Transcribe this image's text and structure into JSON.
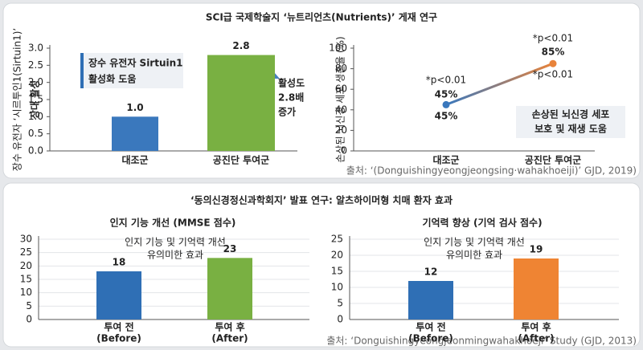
{
  "panels": [
    {
      "title": "SCI급 국제학술지 ‘뉴트리언츠(Nutrients)’ 게재 연구",
      "source": "출처: ‘(Donguishingyeongjeongsing·wahakhoeiji)’ GJD, 2019)"
    },
    {
      "title": "‘동의신경정신과학회지’ 발표 연구: 알츠하이머형 치매 환자 효과",
      "source": "출처: ‘Donguishingyeongjeonmingwahakhoeji’ Study (GJD, 2013)"
    }
  ],
  "chart_data": [
    {
      "type": "bar",
      "y_label": [
        "장수 유전자 ‘시르투인1(Sirtuin1)’",
        "상대 활성"
      ],
      "categories": [
        [
          "대조군"
        ],
        [
          "공진단 투여군"
        ]
      ],
      "values": [
        1.0,
        2.8
      ],
      "value_labels": [
        "1.0",
        "2.8"
      ],
      "colors": [
        "#3a78bd",
        "#79b042"
      ],
      "ylim": [
        0,
        3
      ],
      "yticks": [
        {
          "value": 0,
          "label": "0.0"
        },
        {
          "value": 0.5,
          "label": "0.5"
        },
        {
          "value": 1,
          "label": "1.0"
        },
        {
          "value": 1.5,
          "label": "1.5"
        },
        {
          "value": 2,
          "label": "2.0"
        },
        {
          "value": 2.5,
          "label": "2.5"
        },
        {
          "value": 3,
          "label": "3.0"
        }
      ],
      "grid": false,
      "annotations": [
        "장수 유전자 Sirtuin1",
        "활성화 도움",
        "활성도",
        "2.8배",
        "증가"
      ]
    },
    {
      "type": "line",
      "y_label": [
        "손상된 뇌신경 세포 생존율 (%)"
      ],
      "categories": [
        [
          "대조군"
        ],
        [
          "공진단 투여군"
        ]
      ],
      "values": [
        45,
        85
      ],
      "value_labels": [
        "45%",
        "85%"
      ],
      "colors": [
        "#3a78bd",
        "#e8833a"
      ],
      "ylim": [
        0,
        100
      ],
      "yticks": [
        0,
        20,
        40,
        60,
        80,
        100
      ],
      "grid": false,
      "annotations": [
        "*p<0.01",
        "*p<0.01",
        "*p<0.01",
        "손상된 뇌신경 세포",
        "보호 및 재생 도움"
      ]
    },
    {
      "type": "bar",
      "title": "인지 기능 개선 (MMSE 점수)",
      "categories": [
        [
          "투여 전",
          "(Before)"
        ],
        [
          "투여 후",
          "(After)"
        ]
      ],
      "values": [
        18,
        23
      ],
      "colors": [
        "#2f6fb5",
        "#79b042"
      ],
      "ylim": [
        0,
        30
      ],
      "yticks": [
        0,
        5,
        10,
        15,
        20,
        25,
        30
      ],
      "grid": true,
      "annotations": [
        "인지 기능 및 기억력 개선",
        "유의미한 효과"
      ]
    },
    {
      "type": "bar",
      "title": "기억력 향상 (기억 검사 점수)",
      "categories": [
        [
          "투여 전",
          "(Before)"
        ],
        [
          "투여 후",
          "(After)"
        ]
      ],
      "values": [
        12,
        19
      ],
      "colors": [
        "#2f6fb5",
        "#ef8433"
      ],
      "ylim": [
        0,
        25
      ],
      "yticks": [
        0,
        5,
        10,
        15,
        20,
        25
      ],
      "grid": true,
      "annotations": [
        "인지 기능 및 기억력 개선",
        "유의미한 효과"
      ]
    }
  ]
}
